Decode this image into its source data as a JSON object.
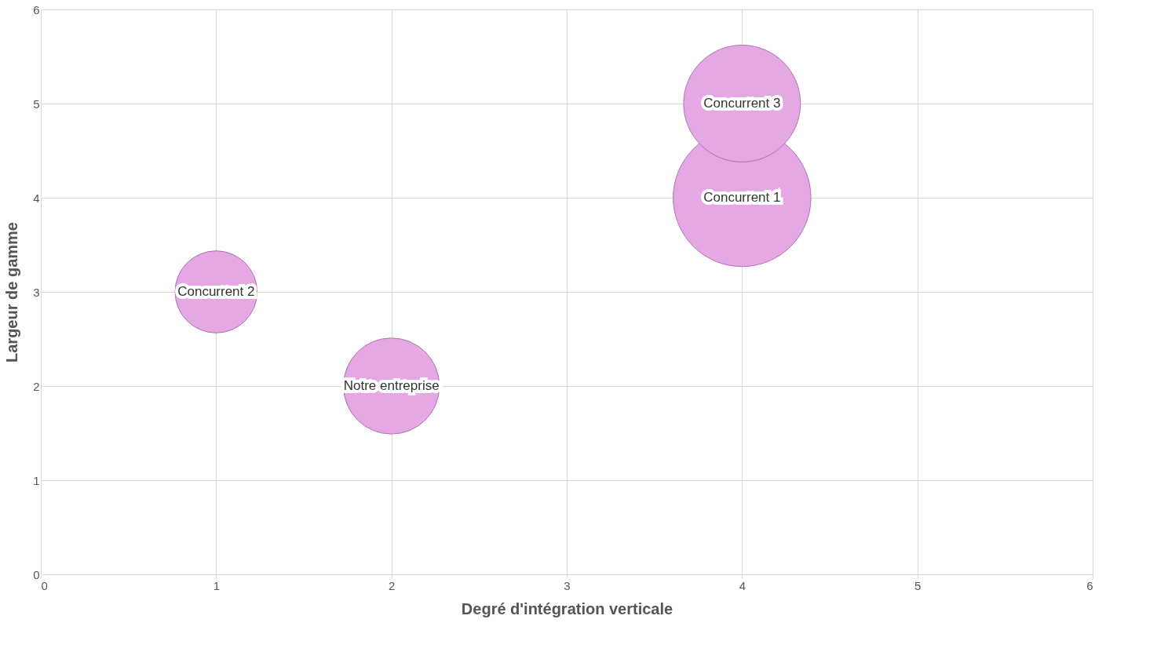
{
  "chart_data": {
    "type": "bubble",
    "xlabel": "Degré d'intégration verticale",
    "ylabel": "Largeur de gamme",
    "xlim": [
      0,
      6
    ],
    "xticks": [
      0,
      1,
      2,
      3,
      4,
      5,
      6
    ],
    "ylim": [
      0,
      6
    ],
    "yticks": [
      0,
      1,
      2,
      3,
      4,
      5,
      6
    ],
    "grid": true,
    "series": [
      {
        "name": "Concurrent 1",
        "color": "#e4a8e4",
        "x": [
          4
        ],
        "values": [
          4
        ],
        "sizes": [
          1
        ]
      },
      {
        "name": "Concurrent 3",
        "color": "#e4a8e4",
        "x": [
          4
        ],
        "values": [
          5
        ],
        "sizes": [
          0.72
        ]
      },
      {
        "name": "Concurrent 2",
        "color": "#e4a8e4",
        "x": [
          1
        ],
        "values": [
          3
        ],
        "sizes": [
          0.355
        ]
      },
      {
        "name": "Notre entreprise",
        "color": "#e4a8e4",
        "x": [
          2
        ],
        "values": [
          2
        ],
        "sizes": [
          0.486
        ]
      }
    ]
  }
}
